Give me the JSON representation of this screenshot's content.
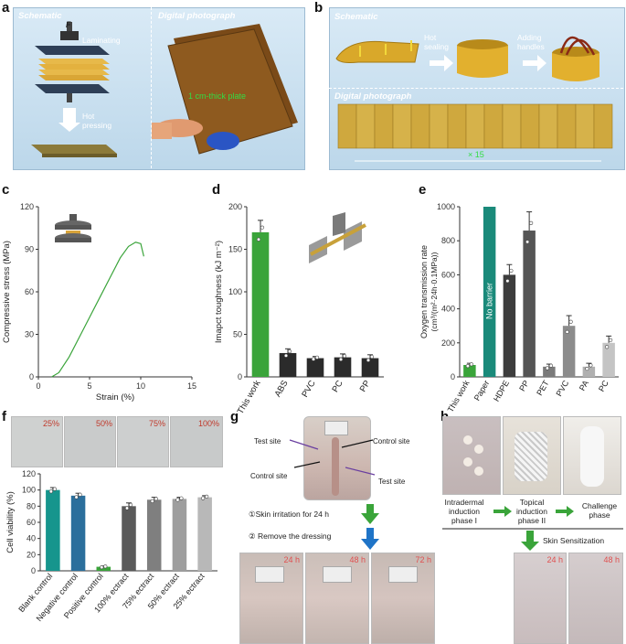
{
  "panel_labels": {
    "a": "a",
    "b": "b",
    "c": "c",
    "d": "d",
    "e": "e",
    "f": "f",
    "g": "g",
    "h": "h"
  },
  "panel_a": {
    "schematic_tag": "Schematic",
    "force_label": "F",
    "laminating": "Laminating",
    "hot_pressing_1": "Hot",
    "hot_pressing_2": "pressing",
    "photo_tag": "Digital photograph",
    "plate_note": "1 cm-thick plate"
  },
  "panel_b": {
    "schematic_tag": "Schematic",
    "hot_sealing_1": "Hot",
    "hot_sealing_2": "sealing",
    "adding_1": "Adding",
    "adding_2": "handles",
    "photo_tag": "Digital photograph",
    "count_note": "× 15"
  },
  "chart_data": [
    {
      "id": "c",
      "type": "line",
      "xlabel": "Strain (%)",
      "ylabel": "Compressive stress (MPa)",
      "xlim": [
        0,
        15
      ],
      "ylim": [
        0,
        120
      ],
      "xticks": [
        0,
        5,
        10,
        15
      ],
      "yticks": [
        0,
        30,
        60,
        90,
        120
      ],
      "series": [
        {
          "color": "#3aa43a",
          "x": [
            1.3,
            2,
            3,
            4,
            5,
            6,
            7,
            8,
            8.8,
            9.5,
            10,
            10.3
          ],
          "y": [
            0,
            3,
            14,
            28,
            42,
            56,
            70,
            84,
            92,
            95,
            94,
            85
          ]
        }
      ]
    },
    {
      "id": "d",
      "type": "bar",
      "ylabel": "Imapct toughness (kJ m⁻²)",
      "ylim": [
        0,
        200
      ],
      "yticks": [
        0,
        50,
        100,
        150,
        200
      ],
      "categories": [
        "This work",
        "ABS",
        "PVC",
        "PC",
        "PP"
      ],
      "values": [
        170,
        28,
        22,
        23,
        22
      ],
      "errors": [
        14,
        5,
        2,
        4,
        4
      ],
      "colors": [
        "#3aa43a",
        "#2b2b2b",
        "#2b2b2b",
        "#2b2b2b",
        "#2b2b2b"
      ]
    },
    {
      "id": "e",
      "type": "bar",
      "ylabel_1": "Oxygen transmission rate",
      "ylabel_2": "(cm³/(m²·24h·0.1MPa))",
      "ylim": [
        0,
        1000
      ],
      "yticks": [
        0,
        200,
        400,
        600,
        800,
        1000
      ],
      "categories": [
        "This work",
        "Paper",
        "HDPE",
        "PP",
        "PET",
        "PVC",
        "PA",
        "PC"
      ],
      "values": [
        70,
        1000,
        600,
        860,
        60,
        300,
        60,
        200
      ],
      "errors": [
        10,
        0,
        60,
        110,
        15,
        60,
        20,
        40
      ],
      "colors": [
        "#3aa43a",
        "#1a8a7a",
        "#3d3d3d",
        "#555555",
        "#7a7a7a",
        "#8c8c8c",
        "#b0b0b0",
        "#c4c4c4"
      ],
      "no_barrier_label": "No barrier"
    },
    {
      "id": "f",
      "type": "bar",
      "ylabel": "Cell viability (%)",
      "ylim": [
        0,
        120
      ],
      "yticks": [
        0,
        20,
        40,
        60,
        80,
        100,
        120
      ],
      "categories": [
        "Blank control",
        "Negative control",
        "Positive control",
        "100% ectract",
        "75% ectract",
        "50% ectract",
        "25% ectract"
      ],
      "values": [
        100,
        93,
        5,
        80,
        88,
        89,
        91
      ],
      "errors": [
        3,
        3,
        1,
        4,
        3,
        2,
        2
      ],
      "colors": [
        "#16958d",
        "#2b6f9c",
        "#3aa43a",
        "#5a5a5a",
        "#7f7f7f",
        "#9e9e9e",
        "#b8b8b8"
      ]
    }
  ],
  "panel_f": {
    "extract_percents": [
      "25%",
      "50%",
      "75%",
      "100%"
    ]
  },
  "panel_g": {
    "test_site_left": "Test site",
    "control_site_right": "Control site",
    "control_site_left": "Control site",
    "test_site_right": "Test site",
    "step1": "①Skin irritation for 24 h",
    "step2": "② Remove the dressing",
    "times": [
      "24 h",
      "48 h",
      "72 h"
    ]
  },
  "panel_h": {
    "phase1_1": "Intradermal",
    "phase1_2": "induction",
    "phase1_3": "phase I",
    "phase2_1": "Topical",
    "phase2_2": "induction",
    "phase2_3": "phase II",
    "phase3_1": "Challenge",
    "phase3_2": "phase",
    "sensitization": "Skin Sensitization",
    "times": [
      "24 h",
      "48 h"
    ]
  },
  "colors": {
    "green": "#3aa43a",
    "blue_arrow": "#1f74c7",
    "amber": "#b8862a",
    "panel_bg": "#cfe2f0"
  }
}
